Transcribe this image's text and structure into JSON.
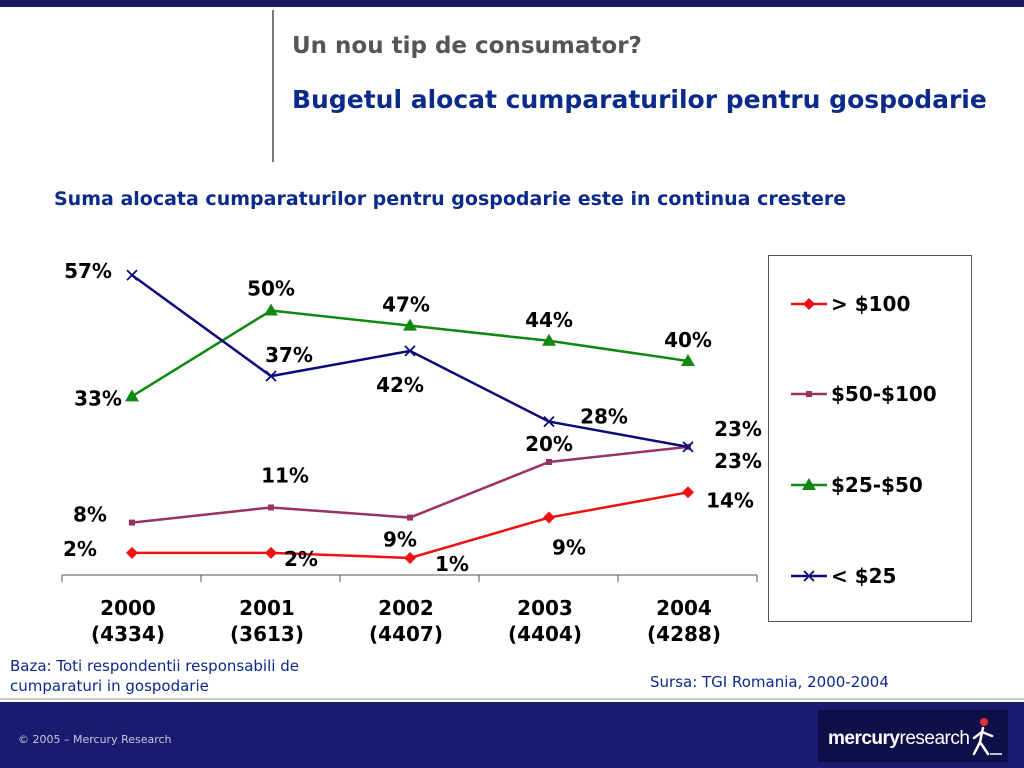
{
  "header": {
    "title": "Un nou tip de consumator?",
    "subtitle": "Bugetul alocat cumparaturilor pentru gospodarie"
  },
  "chart_heading": "Suma alocata cumparaturilor pentru gospodarie este in continua crestere",
  "chart_data": {
    "type": "line",
    "categories": [
      {
        "year": "2000",
        "base": "(4334)"
      },
      {
        "year": "2001",
        "base": "(3613)"
      },
      {
        "year": "2002",
        "base": "(4407)"
      },
      {
        "year": "2003",
        "base": "(4404)"
      },
      {
        "year": "2004",
        "base": "(4288)"
      }
    ],
    "ylim": [
      0,
      60
    ],
    "grid": false,
    "legend_position": "right",
    "series": [
      {
        "name": "> $100",
        "color": "#ee1111",
        "marker": "diamond",
        "values": [
          2,
          2,
          1,
          9,
          14
        ],
        "labels": [
          "2%",
          "2%",
          "1%",
          "9%",
          "14%"
        ]
      },
      {
        "name": "$50-$100",
        "color": "#993366",
        "marker": "square",
        "values": [
          8,
          11,
          9,
          20,
          23
        ],
        "labels": [
          "8%",
          "11%",
          "9%",
          "20%",
          "23%"
        ]
      },
      {
        "name": "$25-$50",
        "color": "#118811",
        "marker": "triangle",
        "values": [
          33,
          50,
          47,
          44,
          40
        ],
        "labels": [
          "33%",
          "50%",
          "47%",
          "44%",
          "40%"
        ]
      },
      {
        "name": "< $25",
        "color": "#0b0b7a",
        "marker": "x",
        "values": [
          57,
          37,
          42,
          28,
          23
        ],
        "labels": [
          "57%",
          "37%",
          "42%",
          "28%",
          "23%"
        ]
      }
    ]
  },
  "footer": {
    "base_note": "Baza: Toti respondentii responsabili de cumparaturi in gospodarie",
    "source_note": "Sursa: TGI Romania, 2000-2004",
    "copyright": "© 2005 – Mercury Research",
    "brand_bold": "mercury",
    "brand_regular": "research"
  }
}
